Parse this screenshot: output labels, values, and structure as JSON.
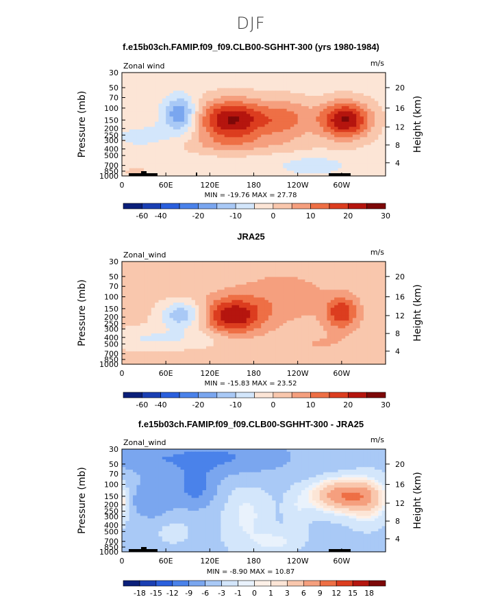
{
  "page": {
    "season": "DJF"
  },
  "chart_data": [
    {
      "type": "heatmap",
      "title": "f.e15b03ch.FAMIP.f09_f09.CLB00-SGHHT-300 (yrs 1980-1984)",
      "left_label": "Zonal wind",
      "units": "m/s",
      "ylabel": "Pressure (mb)",
      "ylabel_right": "Height (km)",
      "x_ticks": [
        "0",
        "60E",
        "120E",
        "180",
        "120W",
        "60W"
      ],
      "y_ticks": [
        "30",
        "50",
        "70",
        "100",
        "150",
        "200",
        "250",
        "300",
        "400",
        "500",
        "700",
        "850",
        "1000"
      ],
      "height_ticks": [
        "20",
        "16",
        "12",
        "8",
        "4"
      ],
      "stats": "MIN = -19.76   MAX = 27.78",
      "colorbar_labels": [
        "-60",
        "-40",
        "-20",
        "-10",
        "0",
        "10",
        "20",
        "30"
      ],
      "features": [
        {
          "lon": 150,
          "p": 150,
          "u": 27
        },
        {
          "lon": 305,
          "p": 150,
          "u": 27
        },
        {
          "lon": 75,
          "p": 120,
          "u": -19
        }
      ]
    },
    {
      "type": "heatmap",
      "title": "JRA25",
      "left_label": "Zonal_wind",
      "units": "m/s",
      "ylabel": "Pressure (mb)",
      "ylabel_right": "Height (km)",
      "x_ticks": [
        "0",
        "60E",
        "120E",
        "180",
        "120W",
        "60W"
      ],
      "y_ticks": [
        "30",
        "50",
        "70",
        "100",
        "150",
        "200",
        "250",
        "300",
        "400",
        "500",
        "700",
        "850",
        "1000"
      ],
      "height_ticks": [
        "20",
        "16",
        "12",
        "8",
        "4"
      ],
      "stats": "MIN = -15.83   MAX = 23.52",
      "colorbar_labels": [
        "-60",
        "-40",
        "-20",
        "-10",
        "0",
        "10",
        "20",
        "30"
      ],
      "features": [
        {
          "lon": 150,
          "p": 150,
          "u": 23
        },
        {
          "lon": 300,
          "p": 150,
          "u": 18
        },
        {
          "lon": 80,
          "p": 150,
          "u": -15
        }
      ]
    },
    {
      "type": "heatmap",
      "title": "f.e15b03ch.FAMIP.f09_f09.CLB00-SGHHT-300 - JRA25",
      "left_label": "Zonal_wind",
      "units": "m/s",
      "ylabel": "Pressure (mb)",
      "ylabel_right": "Height (km)",
      "x_ticks": [
        "0",
        "60E",
        "120E",
        "180",
        "120W",
        "60W"
      ],
      "y_ticks": [
        "30",
        "50",
        "70",
        "100",
        "150",
        "200",
        "250",
        "300",
        "400",
        "500",
        "700",
        "850",
        "1000"
      ],
      "height_ticks": [
        "20",
        "16",
        "12",
        "8",
        "4"
      ],
      "stats": "MIN = -8.90   MAX = 10.87",
      "colorbar_labels": [
        "-18",
        "-15",
        "-12",
        "-9",
        "-6",
        "-3",
        "-1",
        "0",
        "1",
        "3",
        "6",
        "9",
        "12",
        "15",
        "18"
      ],
      "features": [
        {
          "lon": 300,
          "p": 170,
          "u": 10
        },
        {
          "lon": 90,
          "p": 50,
          "u": -8
        },
        {
          "lon": 50,
          "p": 200,
          "u": -8
        }
      ]
    }
  ],
  "colors": {
    "panel1_fills": [
      "#0b1f7a",
      "#1a3fb3",
      "#2a5fdd",
      "#4a82ea",
      "#7aa6ef",
      "#a9c9f6",
      "#d3e6fb",
      "#fce5d6",
      "#f9c7ad",
      "#f59f7e",
      "#ee6f45",
      "#dc3d1f",
      "#b5150e",
      "#7d0808"
    ],
    "panel3_fills": [
      "#0b1f7a",
      "#1a3fb3",
      "#2a5fdd",
      "#4a82ea",
      "#7aa6ef",
      "#a9c9f6",
      "#d3e6fb",
      "#e9f2fc",
      "#fdf0e7",
      "#fce5d6",
      "#f9c7ad",
      "#f59f7e",
      "#ee6f45",
      "#dc3d1f",
      "#b5150e",
      "#7d0808"
    ]
  }
}
